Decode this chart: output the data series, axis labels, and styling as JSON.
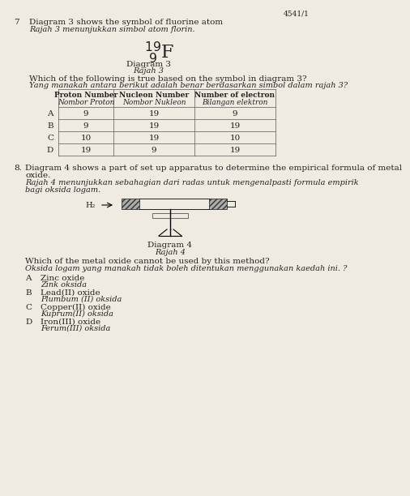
{
  "bg_color": "#f0ebe0",
  "header_num": "4541/1",
  "q7_num": "7",
  "q7_line1": "Diagram 3 shows the symbol of fluorine atom",
  "q7_line2": "Rajah 3 menunjukkan simbol atom florin.",
  "diagram3_label": "Diagram 3",
  "rajah3_label": "Rajah 3",
  "q7_q1": "Which of the following is true based on the symbol in diagram 3?",
  "q7_q2": "Yang manakah antara berikut adalah benar berdasarkan simbol dalam rajah 3?",
  "table_headers_en": [
    "Proton Number",
    "Nucleon Number",
    "Number of electron"
  ],
  "table_headers_my": [
    "Nombor Proton",
    "Nombor Nukleon",
    "Bilangan elektron"
  ],
  "table_rows": [
    [
      "A",
      "9",
      "19",
      "9"
    ],
    [
      "B",
      "9",
      "19",
      "19"
    ],
    [
      "C",
      "10",
      "19",
      "10"
    ],
    [
      "D",
      "19",
      "9",
      "19"
    ]
  ],
  "q8_num": "8.",
  "q8_line1": "Diagram 4 shows a part of set up apparatus to determine the empirical formula of metal",
  "q8_line2": "oxide.",
  "q8_line3": "Rajah 4 menunjukkan sebahagian dari radas untuk mengenalpasti formula empirik",
  "q8_line4": "bagi oksida logam.",
  "h2_label": "H₂",
  "diagram4_label": "Diagram 4",
  "rajah4_label": "Rajah 4",
  "q8_q1": "Which of the metal oxide cannot be used by this method?",
  "q8_q2": "Oksida logam yang manakah tidak boleh ditentukan menggunakan kaedah ini. ?",
  "options": [
    [
      "A",
      "Zinc oxide",
      "Zink oksida"
    ],
    [
      "B",
      "Lead(II) oxide",
      "Plumbum (II) oksida"
    ],
    [
      "C",
      "Copper(II) oxide",
      "Kuprum(II) oksida"
    ],
    [
      "D",
      "Iron(III) oxide",
      "Ferum(III) oksida"
    ]
  ]
}
